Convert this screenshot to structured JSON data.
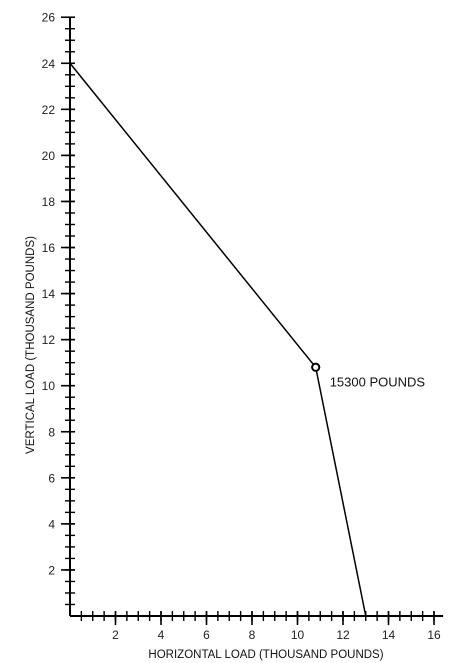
{
  "chart_data": {
    "type": "line",
    "title": "",
    "xlabel": "HORIZONTAL LOAD (THOUSAND POUNDS)",
    "ylabel": "VERTICAL LOAD (THOUSAND POUNDS)",
    "xlim": [
      0,
      16.4
    ],
    "ylim": [
      0,
      26
    ],
    "x_ticks": [
      2,
      4,
      6,
      8,
      10,
      12,
      14,
      16
    ],
    "y_ticks": [
      2,
      4,
      6,
      8,
      10,
      12,
      14,
      16,
      18,
      20,
      22,
      24,
      26
    ],
    "x_tick_labels": [
      "2",
      "4",
      "6",
      "8",
      "10",
      "12",
      "14",
      "16"
    ],
    "y_tick_labels": [
      "2",
      "4",
      "6",
      "8",
      "10",
      "12",
      "14",
      "16",
      "18",
      "20",
      "22",
      "24",
      "26"
    ],
    "minor_tick_step": 0.5,
    "grid": false,
    "series": [
      {
        "x": [
          0,
          10.8,
          13.0
        ],
        "y": [
          24,
          10.8,
          0
        ]
      }
    ],
    "annotations": [
      {
        "text": "15300 POUNDS",
        "x": 10.8,
        "y": 10.8
      }
    ]
  }
}
